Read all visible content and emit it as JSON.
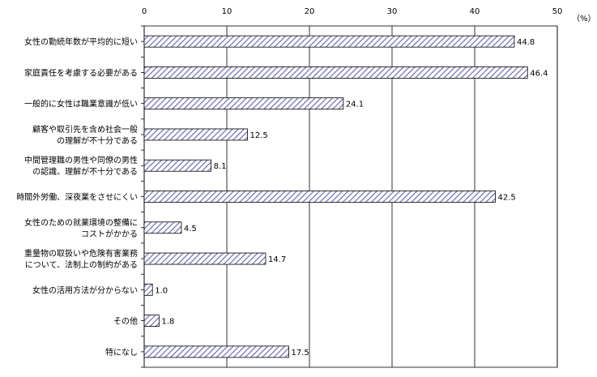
{
  "chart_data": {
    "type": "bar",
    "orientation": "horizontal",
    "unit": "（%）",
    "xlim": [
      0,
      50
    ],
    "xticks": [
      "0",
      "10",
      "20",
      "30",
      "40",
      "50"
    ],
    "grid": true,
    "bar_fill": "diagonal-hatch",
    "colors": {
      "hatch": "#6b6bb0",
      "bar_border": "#000000",
      "grid": "#000000"
    },
    "categories": [
      [
        "女性の勤続年数が平均的に短い"
      ],
      [
        "家庭責任を考慮する必要がある"
      ],
      [
        "一般的に女性は職業意識が低い"
      ],
      [
        "顧客や取引先を含め社会一般",
        "の理解が不十分である"
      ],
      [
        "中間管理職の男性や同僚の男性",
        "の認識、理解が不十分である"
      ],
      [
        "時間外労働、深夜業をさせにくい"
      ],
      [
        "女性のための就業環境の整備に",
        "コストがかかる"
      ],
      [
        "重量物の取扱いや危険有害業務",
        "について、法制上の制約がある"
      ],
      [
        "女性の活用方法が分からない"
      ],
      [
        "その他"
      ],
      [
        "特になし"
      ]
    ],
    "values": [
      44.8,
      46.4,
      24.1,
      12.5,
      8.1,
      42.5,
      4.5,
      14.7,
      1.0,
      1.8,
      17.5
    ],
    "value_labels": [
      "44.8",
      "46.4",
      "24.1",
      "12.5",
      "8.1",
      "42.5",
      "4.5",
      "14.7",
      "1.0",
      "1.8",
      "17.5"
    ]
  }
}
